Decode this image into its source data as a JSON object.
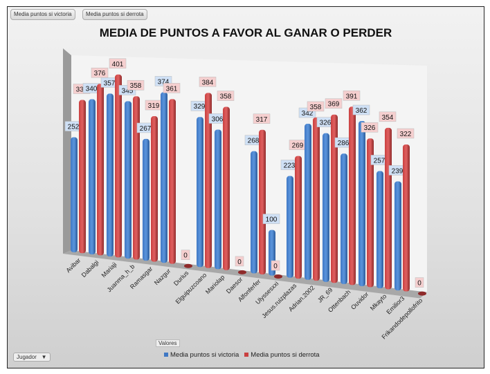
{
  "filters": {
    "victoria": "Media puntos si victoria",
    "derrota": "Media puntos si derrota",
    "valores": "Valores",
    "jugador": "Jugador",
    "dropdown_arrow": "▼"
  },
  "colors": {
    "victoria": "#3f78c4",
    "derrota": "#c94040"
  },
  "chart_data": {
    "type": "bar",
    "title": "MEDIA DE PUNTOS A FAVOR AL GANAR O PERDER",
    "categories": [
      "Avibar",
      "Dabalgi",
      "Mariaji",
      "Juanma_h_b",
      "Ramasgar",
      "Nazgur",
      "Durius",
      "Elguipuzcoano",
      "Mariolap",
      "Daesor",
      "Alfonferfer",
      "Ulyssesxxi",
      "Jesus.ruizplazas",
      "Adrian.2002",
      "JR_69",
      "Ottenbach",
      "Ouvidor",
      "Mkayto",
      "Emilior3",
      "Frikandodepollofrito"
    ],
    "series": [
      {
        "name": "Media puntos si victoria",
        "values": [
          252,
          340,
          357,
          345,
          267,
          374,
          0,
          329,
          306,
          0,
          268,
          100,
          223,
          342,
          326,
          286,
          362,
          257,
          239,
          0
        ]
      },
      {
        "name": "Media puntos si derrota",
        "values": [
          336,
          376,
          401,
          358,
          319,
          361,
          0,
          384,
          358,
          0,
          317,
          0,
          269,
          358,
          369,
          391,
          326,
          354,
          322,
          0
        ]
      }
    ],
    "legend": "bottom",
    "xlabel": "",
    "ylabel": ""
  }
}
